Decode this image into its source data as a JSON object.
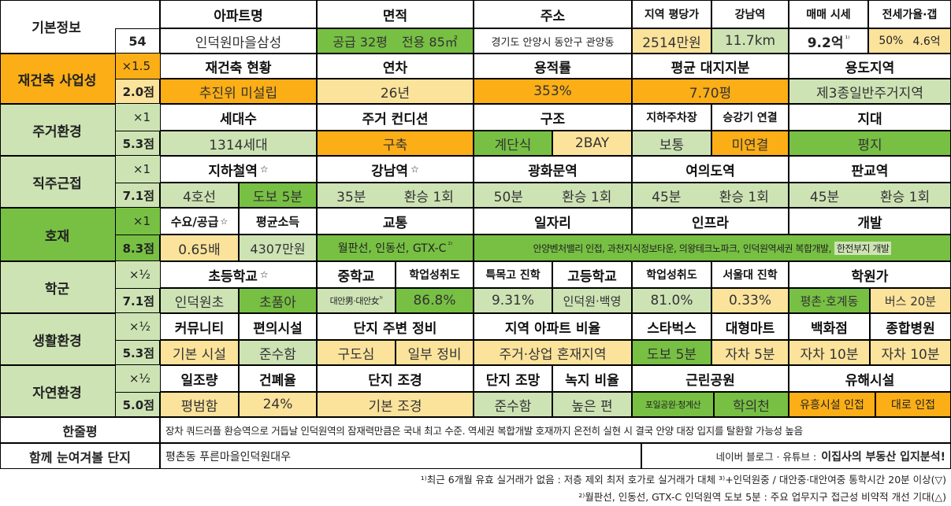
{
  "basic": {
    "title": "기본정보",
    "number": "54",
    "apt_label": "아파트명",
    "apt_name": "인덕원마을삼성",
    "area_label": "면적",
    "area_supply": "공급 32평",
    "area_exclusive": "전용 85㎡",
    "address_label": "주소",
    "address": "경기도 안양시 동안구 관양동",
    "price_label": "지역 평당가",
    "price": "2514만원",
    "gangnam_label": "강남역",
    "gangnam": "11.7km",
    "trade_label": "매매 시세",
    "trade": "9.2억",
    "trade_sup": "¹⁾",
    "lease_label": "전세가율·갭",
    "lease_rate": "50%",
    "lease_gap": "4.6억"
  },
  "rebuild": {
    "title": "재건축 사업성",
    "multiplier": "×1.5",
    "score": "2.0점",
    "status_label": "재건축 현황",
    "status": "추진위 미설립",
    "age_label": "연차",
    "age": "26년",
    "far_label": "용적률",
    "far": "353%",
    "land_label": "평균 대지지분",
    "land": "7.70평",
    "zone_label": "용도지역",
    "zone": "제3종일반주거지역"
  },
  "living": {
    "title": "주거환경",
    "multiplier": "×1",
    "score": "5.3점",
    "households_label": "세대수",
    "households": "1314세대",
    "condition_label": "주거 컨디션",
    "condition": "구축",
    "structure_label": "구조",
    "structure_a": "계단식",
    "structure_b": "2BAY",
    "parking_label": "지하주차장",
    "parking": "보통",
    "elevator_label": "승강기 연결",
    "elevator": "미연결",
    "terrain_label": "지대",
    "terrain": "평지"
  },
  "commute": {
    "title": "직주근접",
    "multiplier": "×1",
    "score": "7.1점",
    "star": "☆",
    "subway_label": "지하철역",
    "subway_line": "4호선",
    "subway_walk": "도보 5분",
    "gangnam_label": "강남역",
    "gangnam_time": "35분",
    "gangnam_transfer": "환승 1회",
    "gwanghwamun_label": "광화문역",
    "gwanghwamun_time": "50분",
    "gwanghwamun_transfer": "환승 1회",
    "yeouido_label": "여의도역",
    "yeouido_time": "45분",
    "yeouido_transfer": "환승 1회",
    "pangyo_label": "판교역",
    "pangyo_time": "45분",
    "pangyo_transfer": "환승 1회"
  },
  "devel": {
    "title": "호재",
    "multiplier": "×1",
    "score": "8.3점",
    "supply_label": "수요/공급",
    "supply": "0.65배",
    "income_label": "평균소득",
    "income": "4307만원",
    "traffic_label": "교통",
    "traffic": "월판선, 인동선, GTX-C",
    "traffic_sup": "²⁾",
    "jobs_label": "일자리",
    "jobs": "안양벤처밸리 인접, 과천지식정보타운, 의왕테크노파크,",
    "infra_label": "인프라",
    "infra": "인덕원역세권 복합개발,",
    "dev_label": "개발",
    "dev": "한전부지 개발"
  },
  "school": {
    "title": "학군",
    "multiplier": "×½",
    "score": "7.1점",
    "elem_label": "초등학교",
    "elem_a": "인덕원초",
    "elem_b": "초품아",
    "mid_label": "중학교",
    "mid": "대안男·대안女",
    "mid_sup": "³⁾",
    "mid_ach_label": "학업성취도",
    "mid_ach": "86.8%",
    "special_label": "특목고 진학",
    "special": "9.31%",
    "high_label": "고등학교",
    "high": "인덕원·백영",
    "high_ach_label": "학업성취도",
    "high_ach": "81.0%",
    "snu_label": "서울대 진학",
    "snu": "0.33%",
    "academy_label": "학원가",
    "academy_a": "평촌·호계동",
    "academy_b": "버스 20분"
  },
  "life": {
    "title": "생활환경",
    "multiplier": "×½",
    "score": "5.3점",
    "community_label": "커뮤니티",
    "community": "기본 시설",
    "conv_label": "편의시설",
    "conv": "준수함",
    "around_label": "단지 주변 정비",
    "around_a": "구도심",
    "around_b": "일부 정비",
    "ratio_label": "지역 아파트 비율",
    "ratio": "주거·상업 혼재지역",
    "starbucks_label": "스타벅스",
    "starbucks": "도보 5분",
    "mart_label": "대형마트",
    "mart": "자차 5분",
    "dept_label": "백화점",
    "dept": "자차 10분",
    "hospital_label": "종합병원",
    "hospital": "자차 10분"
  },
  "nature": {
    "title": "자연환경",
    "multiplier": "×½",
    "score": "5.0점",
    "sun_label": "일조량",
    "sun": "평범함",
    "coverage_label": "건폐율",
    "coverage": "24%",
    "landscape_label": "단지 조경",
    "landscape": "기본 조경",
    "view_label": "단지 조망",
    "view": "준수함",
    "green_label": "녹지 비율",
    "green": "높은 편",
    "park_label": "근린공원",
    "park_a": "포일공원·청계산",
    "park_b": "학의천",
    "hazard_label": "유해시설",
    "hazard_a": "유흥시설 인접",
    "hazard_b": "대로 인접"
  },
  "summary": {
    "label": "한줄평",
    "text": "장차 쿼드러플 환승역으로 거듭날 인덕원역의 잠재력만큼은 국내 최고 수준. 역세권 복합개발 호재까지 온전히 실현 시 결국 안양 대장 입지를 탈환할 가능성 높음"
  },
  "compare": {
    "label": "함께 눈여겨볼 단지",
    "text": "평촌동 푸른마을인덕원대우",
    "source_prefix": "네이버 블로그 · 유튜브 :",
    "source": "이집사의 부동산 입지분석!"
  },
  "footnotes": {
    "line1": "¹⁾최근 6개월 유효 실거래가 없음 : 저층 제외 최저 호가로 실거래가 대체 ³⁾+인덕원중 / 대안중·대안여중 통학시간 20분 이상(▽)",
    "line2": "²⁾월판선, 인동선, GTX-C 인덕원역 도보 5분 : 주요 업무지구 접근성 비약적 개선 기대(△)"
  },
  "colors": {
    "light_green": "#cde3b4",
    "green": "#77c043",
    "light_yellow": "#fbe39b",
    "orange": "#fbae16"
  }
}
